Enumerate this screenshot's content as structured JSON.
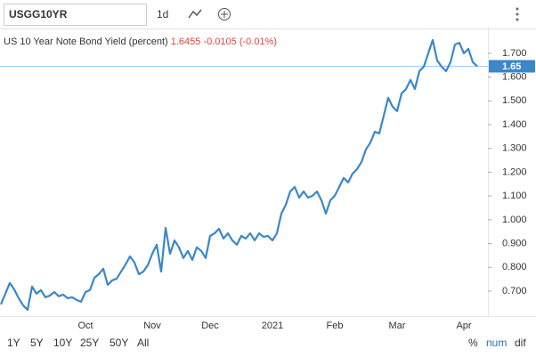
{
  "toolbar": {
    "symbol": "USGG10YR",
    "interval": "1d"
  },
  "legend": {
    "name": "US 10 Year Note Bond Yield (percent)",
    "price": "1.6455",
    "change": "-0.0105 (-0.01%)"
  },
  "ranges": [
    "1Y",
    "5Y",
    "10Y",
    "25Y",
    "50Y",
    "All"
  ],
  "scales": [
    "%",
    "num",
    "dif"
  ],
  "chart_data": {
    "type": "line",
    "categories": [
      null,
      null,
      null,
      null,
      null,
      null,
      null,
      null,
      null,
      null,
      null,
      null,
      null,
      null,
      null,
      null,
      null,
      null,
      null,
      "Oct",
      null,
      null,
      null,
      null,
      null,
      null,
      null,
      null,
      null,
      null,
      null,
      null,
      null,
      null,
      "Nov",
      null,
      null,
      null,
      null,
      null,
      null,
      null,
      null,
      null,
      null,
      null,
      null,
      "Dec",
      null,
      null,
      null,
      null,
      null,
      null,
      null,
      null,
      null,
      null,
      null,
      null,
      null,
      "2021",
      null,
      null,
      null,
      null,
      null,
      null,
      null,
      null,
      null,
      null,
      null,
      null,
      null,
      "Feb",
      null,
      null,
      null,
      null,
      null,
      null,
      null,
      null,
      null,
      null,
      null,
      null,
      null,
      "Mar",
      null,
      null,
      null,
      null,
      null,
      null,
      null,
      null,
      null,
      null,
      null,
      null,
      null,
      null,
      "Apr",
      null,
      null,
      null
    ],
    "series": [
      {
        "color": "#3b87c9",
        "values": [
          0.644,
          0.689,
          0.734,
          0.707,
          0.67,
          0.64,
          0.621,
          0.719,
          0.689,
          0.704,
          0.674,
          0.681,
          0.696,
          0.678,
          0.685,
          0.67,
          0.674,
          0.663,
          0.655,
          0.696,
          0.704,
          0.756,
          0.771,
          0.794,
          0.726,
          0.745,
          0.752,
          0.782,
          0.812,
          0.846,
          0.82,
          0.771,
          0.782,
          0.809,
          0.857,
          0.895,
          0.782,
          0.966,
          0.857,
          0.913,
          0.884,
          0.839,
          0.869,
          0.831,
          0.884,
          0.869,
          0.839,
          0.932,
          0.943,
          0.962,
          0.921,
          0.943,
          0.913,
          0.895,
          0.932,
          0.921,
          0.943,
          0.913,
          0.943,
          0.928,
          0.932,
          0.913,
          0.943,
          1.026,
          1.063,
          1.119,
          1.138,
          1.093,
          1.119,
          1.093,
          1.101,
          1.119,
          1.082,
          1.026,
          1.082,
          1.101,
          1.138,
          1.176,
          1.157,
          1.194,
          1.213,
          1.243,
          1.296,
          1.325,
          1.37,
          1.363,
          1.438,
          1.513,
          1.475,
          1.457,
          1.531,
          1.55,
          1.588,
          1.55,
          1.625,
          1.644,
          1.7,
          1.756,
          1.67,
          1.644,
          1.625,
          1.663,
          1.737,
          1.744,
          1.7,
          1.719,
          1.663,
          1.6455
        ]
      }
    ],
    "last_value_label": "1.65",
    "ylim": [
      0.595,
      1.812
    ],
    "yticks": [
      {
        "value": 0.7,
        "label": "0.700"
      },
      {
        "value": 0.8,
        "label": "0.800"
      },
      {
        "value": 0.9,
        "label": "0.900"
      },
      {
        "value": 1.0,
        "label": "1.000"
      },
      {
        "value": 1.1,
        "label": "1.100"
      },
      {
        "value": 1.2,
        "label": "1.200"
      },
      {
        "value": 1.3,
        "label": "1.300"
      },
      {
        "value": 1.4,
        "label": "1.400"
      },
      {
        "value": 1.5,
        "label": "1.500"
      },
      {
        "value": 1.6,
        "label": "1.600"
      },
      {
        "value": 1.7,
        "label": "1.700"
      }
    ],
    "grid": false
  }
}
